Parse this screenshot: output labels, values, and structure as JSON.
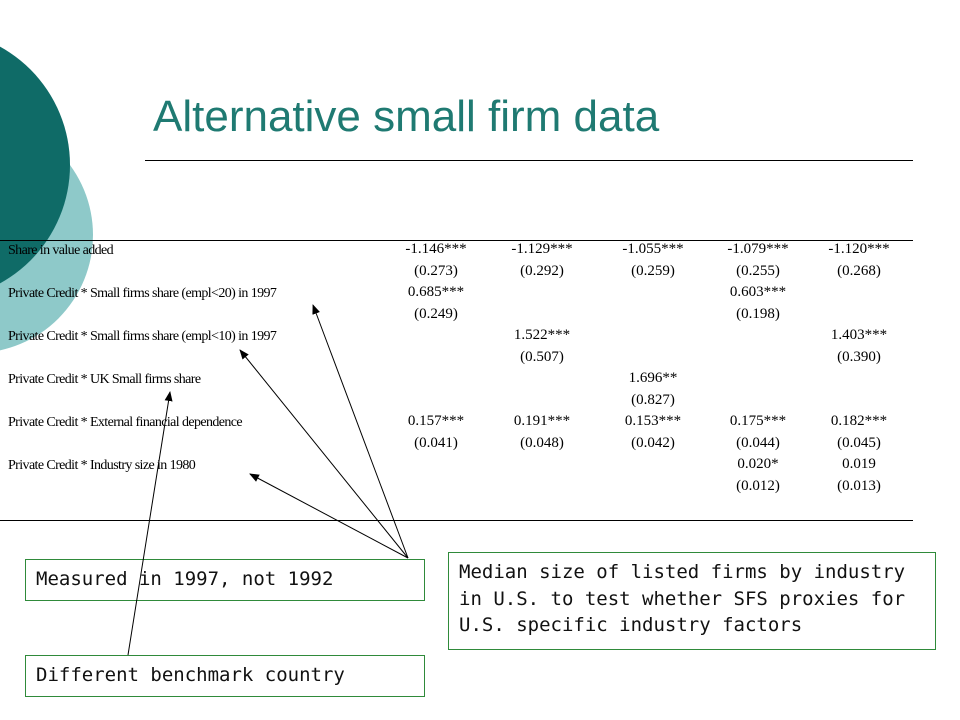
{
  "slide": {
    "title": "Alternative small firm data",
    "colors": {
      "title": "#1f7a72",
      "circle_dark": "#0f6b67",
      "circle_light": "#8ec9c9",
      "callout_border": "#2f8a3a"
    }
  },
  "table": {
    "rows": [
      {
        "label": "Share in value added",
        "cells": [
          "-1.146***",
          "-1.129***",
          "-1.055***",
          "-1.079***",
          "-1.120***"
        ],
        "se": [
          "(0.273)",
          "(0.292)",
          "(0.259)",
          "(0.255)",
          "(0.268)"
        ]
      },
      {
        "label": "Private Credit * Small firms share (empl<20) in 1997",
        "cells": [
          "0.685***",
          "",
          "",
          "0.603***",
          ""
        ],
        "se": [
          "(0.249)",
          "",
          "",
          "(0.198)",
          ""
        ]
      },
      {
        "label": "Private Credit * Small firms share (empl<10) in 1997",
        "cells": [
          "",
          "1.522***",
          "",
          "",
          "1.403***"
        ],
        "se": [
          "",
          "(0.507)",
          "",
          "",
          "(0.390)"
        ]
      },
      {
        "label": "Private Credit * UK Small firms share",
        "cells": [
          "",
          "",
          "1.696**",
          "",
          ""
        ],
        "se": [
          "",
          "",
          "(0.827)",
          "",
          ""
        ]
      },
      {
        "label": "Private Credit * External financial dependence",
        "cells": [
          "0.157***",
          "0.191***",
          "0.153***",
          "0.175***",
          "0.182***"
        ],
        "se": [
          "(0.041)",
          "(0.048)",
          "(0.042)",
          "(0.044)",
          "(0.045)"
        ]
      },
      {
        "label": "Private Credit * Industry size in 1980",
        "cells": [
          "",
          "",
          "",
          "0.020*",
          "0.019"
        ],
        "se": [
          "",
          "",
          "",
          "(0.012)",
          "(0.013)"
        ]
      }
    ]
  },
  "callouts": {
    "measured": "Measured in 1997, not 1992",
    "benchmark": "Different benchmark country",
    "median": {
      "line1": "Median size of listed firms by industry",
      "line2": "in U.S. to test whether SFS proxies for",
      "line3": "U.S. specific industry factors"
    }
  }
}
